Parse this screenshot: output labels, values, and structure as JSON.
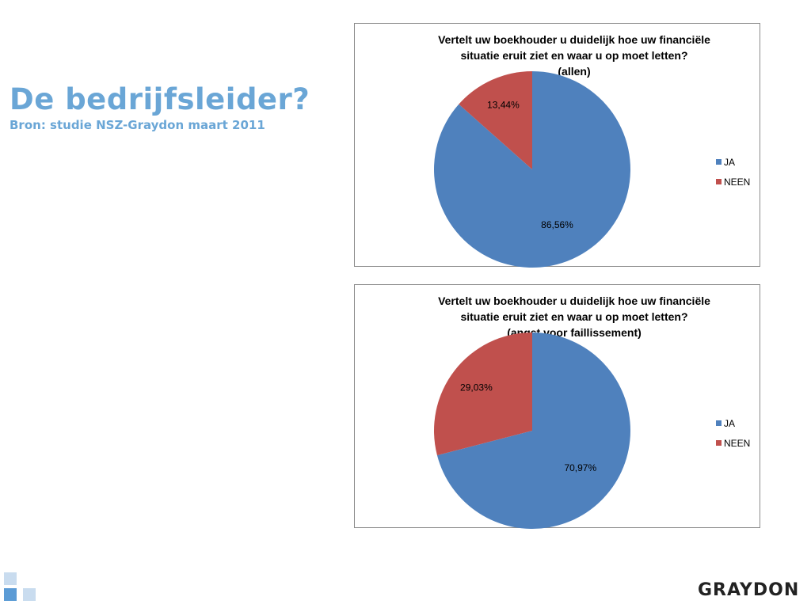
{
  "slide": {
    "title": "De bedrijfsleider?",
    "subtitle": "Bron: studie NSZ-Graydon maart 2011"
  },
  "logo": {
    "text": "GRAYDON"
  },
  "colors": {
    "ja": "#4f81bd",
    "neen": "#c0504d",
    "heading": "#6aa6d6"
  },
  "chart_data": [
    {
      "type": "pie",
      "title_lines": [
        "Vertelt uw boekhouder u duidelijk hoe uw financiële",
        "situatie eruit ziet en waar u op moet letten?",
        "(allen)"
      ],
      "legend_position": "right",
      "slices": [
        {
          "name": "JA",
          "value": 86.56,
          "label": "86,56%",
          "color": "#4f81bd"
        },
        {
          "name": "NEEN",
          "value": 13.44,
          "label": "13,44%",
          "color": "#c0504d"
        }
      ]
    },
    {
      "type": "pie",
      "title_lines": [
        "Vertelt uw boekhouder u duidelijk hoe uw financiële",
        "situatie eruit ziet en waar u op moet letten?",
        "(angst voor faillissement)"
      ],
      "legend_position": "right",
      "slices": [
        {
          "name": "JA",
          "value": 70.97,
          "label": "70,97%",
          "color": "#4f81bd"
        },
        {
          "name": "NEEN",
          "value": 29.03,
          "label": "29,03%",
          "color": "#c0504d"
        }
      ]
    }
  ]
}
